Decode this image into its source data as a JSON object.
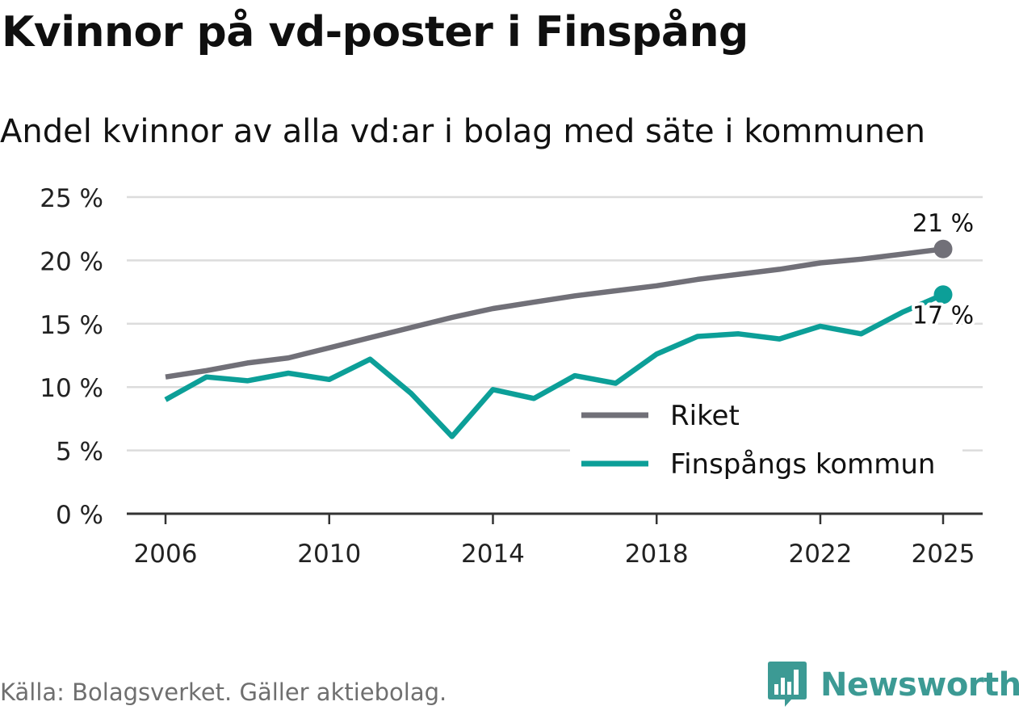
{
  "title": "Kvinnor på vd-poster i Finspång",
  "subtitle": "Andel kvinnor av alla vd:ar i bolag med säte i kommunen",
  "source": "Källa: Bolagsverket. Gäller aktiebolag.",
  "brand": {
    "name": "Newsworthy",
    "icon": "newsworthy-logo-icon"
  },
  "colors": {
    "riket": "#717078",
    "finspang": "#0c9f98",
    "grid": "#dcdcdc",
    "axis": "#333333"
  },
  "chart_data": {
    "type": "line",
    "title": "Kvinnor på vd-poster i Finspång",
    "xlabel": "",
    "ylabel": "",
    "ylim": [
      0,
      25
    ],
    "yticks": [
      0,
      5,
      10,
      15,
      20,
      25
    ],
    "ytick_labels": [
      "0 %",
      "5 %",
      "10 %",
      "15 %",
      "20 %",
      "25 %"
    ],
    "xticks": [
      2006,
      2010,
      2014,
      2018,
      2022,
      2025
    ],
    "xtick_labels": [
      "2006",
      "2010",
      "2014",
      "2018",
      "2022",
      "2025"
    ],
    "x": [
      2006,
      2007,
      2008,
      2009,
      2010,
      2011,
      2012,
      2013,
      2014,
      2015,
      2016,
      2017,
      2018,
      2019,
      2020,
      2021,
      2022,
      2023,
      2024,
      2025
    ],
    "grid": true,
    "legend_position": "lower-right",
    "series": [
      {
        "name": "Riket",
        "color": "#717078",
        "values": [
          10.8,
          11.3,
          11.9,
          12.3,
          13.1,
          13.9,
          14.7,
          15.5,
          16.2,
          16.7,
          17.2,
          17.6,
          18.0,
          18.5,
          18.9,
          19.3,
          19.8,
          20.1,
          20.5,
          20.9
        ],
        "end_label": "21 %"
      },
      {
        "name": "Finspångs kommun",
        "color": "#0c9f98",
        "values": [
          9.0,
          10.8,
          10.5,
          11.1,
          10.6,
          12.2,
          9.5,
          6.1,
          9.8,
          9.1,
          10.9,
          10.3,
          12.6,
          14.0,
          14.2,
          13.8,
          14.8,
          14.2,
          15.9,
          17.3
        ],
        "end_label": "17 %"
      }
    ]
  }
}
